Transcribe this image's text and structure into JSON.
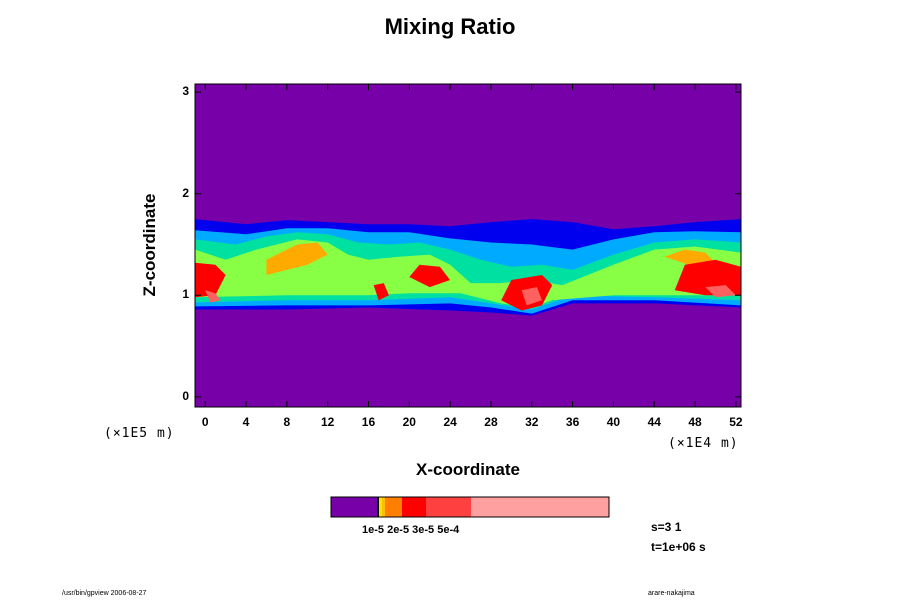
{
  "chart_data": {
    "type": "heatmap",
    "title": "Mixing Ratio",
    "xlabel": "X-coordinate",
    "ylabel": "Z-coordinate",
    "x_unit": "(×1E4 m)",
    "y_unit": "(×1E5 m)",
    "xlim": [
      -1,
      52.5
    ],
    "ylim": [
      -0.1,
      3.08
    ],
    "x_ticks": [
      "0",
      "4",
      "8",
      "12",
      "16",
      "20",
      "24",
      "28",
      "32",
      "36",
      "40",
      "44",
      "48",
      "52"
    ],
    "y_ticks": [
      "0",
      "1",
      "2",
      "3"
    ],
    "field_regions": [
      {
        "level": 0,
        "points": [
          [
            -1,
            1.75
          ],
          [
            4,
            1.7
          ],
          [
            8,
            1.74
          ],
          [
            12,
            1.72
          ],
          [
            16,
            1.7
          ],
          [
            20,
            1.7
          ],
          [
            24,
            1.68
          ],
          [
            28,
            1.72
          ],
          [
            32,
            1.75
          ],
          [
            36,
            1.72
          ],
          [
            40,
            1.65
          ],
          [
            44,
            1.68
          ],
          [
            48,
            1.72
          ],
          [
            52.5,
            1.75
          ],
          [
            52.5,
            0.88
          ],
          [
            44,
            0.92
          ],
          [
            36,
            0.92
          ],
          [
            32,
            0.8
          ],
          [
            28,
            0.83
          ],
          [
            24,
            0.85
          ],
          [
            16,
            0.88
          ],
          [
            8,
            0.86
          ],
          [
            -1,
            0.86
          ]
        ]
      },
      {
        "level": 1,
        "points": [
          [
            -1,
            1.64
          ],
          [
            4,
            1.6
          ],
          [
            8,
            1.66
          ],
          [
            12,
            1.66
          ],
          [
            16,
            1.62
          ],
          [
            20,
            1.62
          ],
          [
            24,
            1.56
          ],
          [
            28,
            1.52
          ],
          [
            32,
            1.5
          ],
          [
            36,
            1.45
          ],
          [
            40,
            1.55
          ],
          [
            44,
            1.62
          ],
          [
            48,
            1.63
          ],
          [
            52.5,
            1.62
          ],
          [
            52.5,
            0.9
          ],
          [
            44,
            0.95
          ],
          [
            36,
            0.95
          ],
          [
            32,
            0.82
          ],
          [
            28,
            0.88
          ],
          [
            24,
            0.92
          ],
          [
            16,
            0.9
          ],
          [
            8,
            0.9
          ],
          [
            -1,
            0.89
          ]
        ]
      },
      {
        "level": 2,
        "points": [
          [
            -1,
            1.55
          ],
          [
            3,
            1.5
          ],
          [
            6,
            1.58
          ],
          [
            9,
            1.62
          ],
          [
            12,
            1.6
          ],
          [
            15,
            1.52
          ],
          [
            18,
            1.5
          ],
          [
            21,
            1.52
          ],
          [
            24,
            1.45
          ],
          [
            27,
            1.35
          ],
          [
            30,
            1.28
          ],
          [
            33,
            1.3
          ],
          [
            36,
            1.25
          ],
          [
            40,
            1.4
          ],
          [
            44,
            1.52
          ],
          [
            48,
            1.55
          ],
          [
            52.5,
            1.52
          ],
          [
            52.5,
            0.95
          ],
          [
            44,
            0.98
          ],
          [
            36,
            1.0
          ],
          [
            32,
            0.86
          ],
          [
            28,
            0.92
          ],
          [
            24,
            0.98
          ],
          [
            16,
            0.95
          ],
          [
            8,
            0.95
          ],
          [
            -1,
            0.93
          ]
        ]
      },
      {
        "level": 3,
        "points": [
          [
            -1,
            1.45
          ],
          [
            2,
            1.35
          ],
          [
            5,
            1.45
          ],
          [
            9,
            1.55
          ],
          [
            12,
            1.52
          ],
          [
            14,
            1.4
          ],
          [
            16,
            1.35
          ],
          [
            19,
            1.38
          ],
          [
            22,
            1.4
          ],
          [
            24,
            1.3
          ],
          [
            26,
            1.12
          ],
          [
            29,
            1.12
          ],
          [
            32,
            1.15
          ],
          [
            35,
            1.1
          ],
          [
            40,
            1.3
          ],
          [
            44,
            1.45
          ],
          [
            48,
            1.48
          ],
          [
            52.5,
            1.42
          ],
          [
            52.5,
            1.0
          ],
          [
            46,
            1.0
          ],
          [
            40,
            1.0
          ],
          [
            34,
            0.95
          ],
          [
            32,
            0.88
          ],
          [
            29,
            0.92
          ],
          [
            25,
            1.02
          ],
          [
            20,
            1.02
          ],
          [
            16,
            1.0
          ],
          [
            8,
            1.0
          ],
          [
            -1,
            0.98
          ]
        ]
      },
      {
        "level": 4,
        "points": [
          [
            6,
            1.35
          ],
          [
            9,
            1.5
          ],
          [
            11,
            1.52
          ],
          [
            12,
            1.4
          ],
          [
            10,
            1.3
          ],
          [
            8,
            1.25
          ],
          [
            6,
            1.2
          ]
        ]
      },
      {
        "level": 4,
        "points": [
          [
            45,
            1.38
          ],
          [
            47,
            1.45
          ],
          [
            49,
            1.42
          ],
          [
            50,
            1.32
          ],
          [
            48,
            1.28
          ]
        ]
      },
      {
        "level": 5,
        "points": [
          [
            -1,
            1.32
          ],
          [
            1,
            1.3
          ],
          [
            2,
            1.2
          ],
          [
            1,
            1.0
          ],
          [
            -1,
            0.98
          ]
        ]
      },
      {
        "level": 5,
        "points": [
          [
            21,
            1.3
          ],
          [
            23,
            1.28
          ],
          [
            24,
            1.15
          ],
          [
            22,
            1.08
          ],
          [
            20,
            1.18
          ]
        ]
      },
      {
        "level": 5,
        "points": [
          [
            30,
            1.15
          ],
          [
            33,
            1.2
          ],
          [
            34,
            1.1
          ],
          [
            33,
            0.9
          ],
          [
            31,
            0.85
          ],
          [
            29,
            0.95
          ]
        ]
      },
      {
        "level": 5,
        "points": [
          [
            47,
            1.3
          ],
          [
            50,
            1.35
          ],
          [
            52.5,
            1.28
          ],
          [
            52.5,
            1.0
          ],
          [
            49,
            1.0
          ],
          [
            46,
            1.05
          ]
        ]
      },
      {
        "level": 5,
        "points": [
          [
            16.5,
            1.1
          ],
          [
            17.5,
            1.12
          ],
          [
            18,
            1.0
          ],
          [
            17,
            0.95
          ]
        ]
      },
      {
        "level": 6,
        "points": [
          [
            0,
            1.05
          ],
          [
            1,
            1.02
          ],
          [
            1.5,
            0.95
          ],
          [
            0.5,
            0.93
          ]
        ]
      },
      {
        "level": 6,
        "points": [
          [
            31,
            1.05
          ],
          [
            32.5,
            1.08
          ],
          [
            33,
            0.95
          ],
          [
            31.5,
            0.9
          ]
        ]
      },
      {
        "level": 6,
        "points": [
          [
            49,
            1.08
          ],
          [
            51,
            1.1
          ],
          [
            52,
            1.0
          ],
          [
            50,
            0.98
          ]
        ]
      }
    ],
    "colorbar": {
      "colors": [
        "#7700a8",
        "#ffe000",
        "#ff8000",
        "#ff0000",
        "#ff4040",
        "#ffa0a0"
      ],
      "label": "1e-5  2e-5  3e-5  5e-4"
    },
    "level_colors": [
      "#0000ee",
      "#00aaff",
      "#00e0a0",
      "#88ff44",
      "#ffaa00",
      "#ff0000",
      "#ff6060"
    ],
    "background_color": "#7700a8"
  },
  "params": {
    "s": "s=3 1",
    "t": "t=1e+06 s"
  },
  "footer": {
    "left": "/usr/bin/gpview 2006-08-27",
    "right": "arare-nakajima"
  }
}
